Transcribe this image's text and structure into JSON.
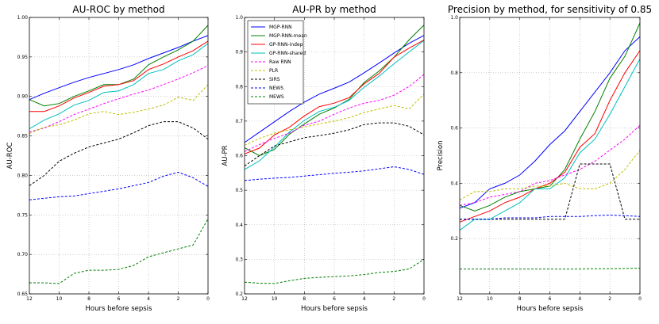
{
  "chart_data": [
    {
      "type": "line",
      "title": "AU-ROC by method",
      "xlabel": "Hours before sepsis",
      "ylabel": "AU-ROC",
      "xlim": [
        12,
        0
      ],
      "ylim": [
        0.65,
        1.0
      ],
      "xticks": [
        12,
        10,
        8,
        6,
        4,
        2,
        0
      ],
      "yticks": [
        0.65,
        0.7,
        0.75,
        0.8,
        0.85,
        0.9,
        0.95,
        1.0
      ],
      "ytick_labels": [
        "0.65",
        "0.70",
        "0.75",
        "0.80",
        "0.85",
        "0.90",
        "0.95",
        "1.00"
      ],
      "grid": true,
      "legend": null,
      "x": [
        12,
        11,
        10,
        9,
        8,
        7,
        6,
        5,
        4,
        3,
        2,
        1,
        0
      ],
      "series": [
        {
          "name": "MGP-RNN",
          "values": [
            0.896,
            0.904,
            0.911,
            0.918,
            0.924,
            0.929,
            0.934,
            0.94,
            0.948,
            0.955,
            0.962,
            0.97,
            0.977
          ]
        },
        {
          "name": "MGP-RNN-mean",
          "values": [
            0.896,
            0.888,
            0.891,
            0.9,
            0.907,
            0.915,
            0.915,
            0.922,
            0.94,
            0.95,
            0.959,
            0.97,
            0.99
          ]
        },
        {
          "name": "GP-RNN-indep",
          "values": [
            0.881,
            0.881,
            0.888,
            0.898,
            0.905,
            0.913,
            0.915,
            0.92,
            0.934,
            0.941,
            0.95,
            0.958,
            0.97
          ]
        },
        {
          "name": "GP-RNN-shared",
          "values": [
            0.859,
            0.87,
            0.878,
            0.889,
            0.895,
            0.905,
            0.907,
            0.915,
            0.929,
            0.934,
            0.945,
            0.953,
            0.967
          ]
        },
        {
          "name": "Raw RNN",
          "values": [
            0.855,
            0.86,
            0.868,
            0.877,
            0.884,
            0.891,
            0.897,
            0.903,
            0.908,
            0.915,
            0.922,
            0.93,
            0.939
          ]
        },
        {
          "name": "PLR",
          "values": [
            0.853,
            0.861,
            0.864,
            0.87,
            0.878,
            0.881,
            0.877,
            0.88,
            0.884,
            0.889,
            0.899,
            0.895,
            0.915
          ]
        },
        {
          "name": "SIRS",
          "values": [
            0.787,
            0.8,
            0.818,
            0.828,
            0.836,
            0.841,
            0.846,
            0.854,
            0.863,
            0.868,
            0.868,
            0.86,
            0.846
          ]
        },
        {
          "name": "NEWS",
          "values": [
            0.769,
            0.771,
            0.773,
            0.774,
            0.777,
            0.78,
            0.783,
            0.787,
            0.791,
            0.799,
            0.804,
            0.797,
            0.786
          ]
        },
        {
          "name": "MEWS",
          "values": [
            0.664,
            0.664,
            0.663,
            0.676,
            0.68,
            0.68,
            0.681,
            0.686,
            0.697,
            0.702,
            0.707,
            0.712,
            0.745
          ]
        }
      ]
    },
    {
      "type": "line",
      "title": "AU-PR by method",
      "xlabel": "Hours before sepsis",
      "ylabel": "AU-PR",
      "xlim": [
        12,
        0
      ],
      "ylim": [
        0.2,
        1.0
      ],
      "xticks": [
        12,
        10,
        8,
        6,
        4,
        2,
        0
      ],
      "yticks": [
        0.2,
        0.3,
        0.4,
        0.5,
        0.6,
        0.7,
        0.8,
        0.9,
        1.0
      ],
      "ytick_labels": [
        "0.2",
        "0.3",
        "0.4",
        "0.5",
        "0.6",
        "0.7",
        "0.8",
        "0.9",
        "1.0"
      ],
      "grid": true,
      "legend": "top-left",
      "x": [
        12,
        11,
        10,
        9,
        8,
        7,
        6,
        5,
        4,
        3,
        2,
        1,
        0
      ],
      "series": [
        {
          "name": "MGP-RNN",
          "values": [
            0.638,
            0.668,
            0.698,
            0.728,
            0.755,
            0.778,
            0.795,
            0.813,
            0.84,
            0.868,
            0.897,
            0.925,
            0.948
          ]
        },
        {
          "name": "MGP-RNN-mean",
          "values": [
            0.623,
            0.6,
            0.618,
            0.662,
            0.692,
            0.72,
            0.738,
            0.763,
            0.812,
            0.845,
            0.885,
            0.935,
            0.978
          ]
        },
        {
          "name": "GP-RNN-indep",
          "values": [
            0.605,
            0.622,
            0.66,
            0.682,
            0.715,
            0.742,
            0.752,
            0.768,
            0.808,
            0.838,
            0.885,
            0.911,
            0.935
          ]
        },
        {
          "name": "GP-RNN-shared",
          "values": [
            0.56,
            0.585,
            0.625,
            0.668,
            0.702,
            0.728,
            0.74,
            0.76,
            0.798,
            0.83,
            0.866,
            0.9,
            0.933
          ]
        },
        {
          "name": "Raw RNN",
          "values": [
            0.612,
            0.632,
            0.65,
            0.665,
            0.688,
            0.7,
            0.72,
            0.738,
            0.752,
            0.76,
            0.775,
            0.8,
            0.835
          ]
        },
        {
          "name": "PLR",
          "values": [
            0.63,
            0.65,
            0.665,
            0.675,
            0.683,
            0.692,
            0.7,
            0.71,
            0.725,
            0.735,
            0.745,
            0.735,
            0.778
          ]
        },
        {
          "name": "SIRS",
          "values": [
            0.57,
            0.6,
            0.628,
            0.64,
            0.652,
            0.658,
            0.665,
            0.675,
            0.69,
            0.695,
            0.695,
            0.685,
            0.66
          ]
        },
        {
          "name": "NEWS",
          "values": [
            0.528,
            0.532,
            0.535,
            0.537,
            0.541,
            0.545,
            0.549,
            0.552,
            0.556,
            0.562,
            0.568,
            0.56,
            0.546
          ]
        },
        {
          "name": "MEWS",
          "values": [
            0.234,
            0.231,
            0.23,
            0.238,
            0.245,
            0.248,
            0.25,
            0.252,
            0.256,
            0.262,
            0.265,
            0.272,
            0.3
          ]
        }
      ]
    },
    {
      "type": "line",
      "title": "Precision by method, for sensitivity of 0.85",
      "xlabel": "Hours before sepsis",
      "ylabel": "Precision",
      "xlim": [
        12,
        0
      ],
      "ylim": [
        0.0,
        1.0
      ],
      "xticks": [
        12,
        10,
        8,
        6,
        4,
        2,
        0
      ],
      "yticks": [
        0.0,
        0.2,
        0.4,
        0.6,
        0.8,
        1.0
      ],
      "ytick_labels": [
        "",
        "0.2",
        "0.4",
        "0.6",
        "0.8",
        "1.0"
      ],
      "grid": true,
      "legend": null,
      "x": [
        12,
        11,
        10,
        9,
        8,
        7,
        6,
        5,
        4,
        3,
        2,
        1,
        0
      ],
      "series": [
        {
          "name": "MGP-RNN",
          "values": [
            0.31,
            0.33,
            0.38,
            0.4,
            0.43,
            0.48,
            0.54,
            0.59,
            0.66,
            0.73,
            0.8,
            0.88,
            0.93
          ]
        },
        {
          "name": "MGP-RNN-mean",
          "values": [
            0.32,
            0.3,
            0.32,
            0.35,
            0.37,
            0.38,
            0.39,
            0.45,
            0.56,
            0.66,
            0.78,
            0.86,
            0.98
          ]
        },
        {
          "name": "GP-RNN-indep",
          "values": [
            0.26,
            0.28,
            0.3,
            0.33,
            0.35,
            0.38,
            0.4,
            0.44,
            0.53,
            0.58,
            0.7,
            0.8,
            0.88
          ]
        },
        {
          "name": "GP-RNN-shared",
          "values": [
            0.23,
            0.27,
            0.27,
            0.3,
            0.33,
            0.38,
            0.38,
            0.42,
            0.51,
            0.56,
            0.65,
            0.75,
            0.85
          ]
        },
        {
          "name": "Raw RNN",
          "values": [
            0.32,
            0.33,
            0.35,
            0.36,
            0.37,
            0.4,
            0.41,
            0.43,
            0.45,
            0.48,
            0.52,
            0.56,
            0.61
          ]
        },
        {
          "name": "PLR",
          "values": [
            0.34,
            0.37,
            0.37,
            0.38,
            0.38,
            0.39,
            0.39,
            0.4,
            0.38,
            0.38,
            0.4,
            0.45,
            0.52
          ]
        },
        {
          "name": "SIRS",
          "values": [
            0.27,
            0.27,
            0.27,
            0.27,
            0.27,
            0.27,
            0.27,
            0.27,
            0.47,
            0.47,
            0.47,
            0.27,
            0.27
          ]
        },
        {
          "name": "NEWS",
          "values": [
            0.27,
            0.27,
            0.27,
            0.275,
            0.275,
            0.275,
            0.28,
            0.28,
            0.28,
            0.283,
            0.285,
            0.283,
            0.28
          ]
        },
        {
          "name": "MEWS",
          "values": [
            0.09,
            0.09,
            0.09,
            0.09,
            0.09,
            0.09,
            0.09,
            0.09,
            0.09,
            0.091,
            0.091,
            0.092,
            0.093
          ]
        }
      ]
    }
  ],
  "styles": {
    "MGP-RNN": {
      "color": "#0000ff",
      "dash": "solid"
    },
    "MGP-RNN-mean": {
      "color": "#008000",
      "dash": "solid"
    },
    "GP-RNN-indep": {
      "color": "#ff0000",
      "dash": "solid"
    },
    "GP-RNN-shared": {
      "color": "#00bfbf",
      "dash": "solid"
    },
    "Raw RNN": {
      "color": "#ff00ff",
      "dash": "dashed"
    },
    "PLR": {
      "color": "#bfbf00",
      "dash": "dashed"
    },
    "SIRS": {
      "color": "#000000",
      "dash": "dashed"
    },
    "NEWS": {
      "color": "#0000ff",
      "dash": "dashed"
    },
    "MEWS": {
      "color": "#008000",
      "dash": "dashed"
    }
  }
}
